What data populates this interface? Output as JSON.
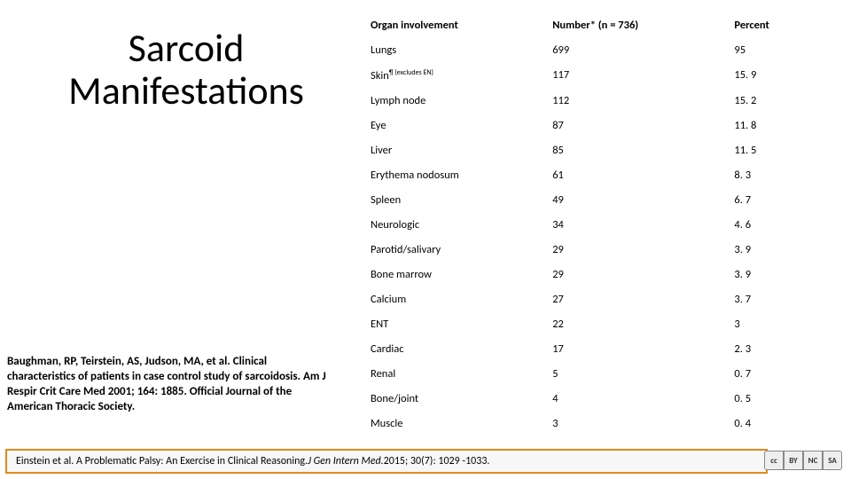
{
  "title": "Sarcoid Manifestations",
  "table": {
    "headers": [
      "Organ involvement",
      "Number* (n = 736)",
      "Percent"
    ],
    "rows": [
      {
        "organ": "Lungs",
        "number": "699",
        "percent": "95"
      },
      {
        "organ": "Skin",
        "organ_sup": "¶ (excludes EN)",
        "number": "117",
        "percent": "15. 9"
      },
      {
        "organ": "Lymph node",
        "number": "112",
        "percent": "15. 2"
      },
      {
        "organ": "Eye",
        "number": "87",
        "percent": "11. 8"
      },
      {
        "organ": "Liver",
        "number": "85",
        "percent": "11. 5"
      },
      {
        "organ": "Erythema nodosum",
        "number": "61",
        "percent": "8. 3"
      },
      {
        "organ": "Spleen",
        "number": "49",
        "percent": "6. 7"
      },
      {
        "organ": "Neurologic",
        "number": "34",
        "percent": "4. 6"
      },
      {
        "organ": "Parotid/salivary",
        "number": "29",
        "percent": "3. 9"
      },
      {
        "organ": "Bone marrow",
        "number": "29",
        "percent": "3. 9"
      },
      {
        "organ": "Calcium",
        "number": "27",
        "percent": "3. 7"
      },
      {
        "organ": "ENT",
        "number": "22",
        "percent": "3"
      },
      {
        "organ": "Cardiac",
        "number": "17",
        "percent": "2. 3"
      },
      {
        "organ": "Renal",
        "number": "5",
        "percent": "0. 7"
      },
      {
        "organ": "Bone/joint",
        "number": "4",
        "percent": "0. 5"
      },
      {
        "organ": "Muscle",
        "number": "3",
        "percent": "0. 4"
      }
    ]
  },
  "citation": "Baughman, RP, Teirstein, AS, Judson, MA, et al. Clinical characteristics of patients in case control study of sarcoidosis. Am J Respir Crit Care Med 2001; 164: 1885. Official Journal of the American Thoracic Society.",
  "footer": {
    "prefix": "Einstein et al. A Problematic Palsy: An Exercise in Clinical Reasoning. ",
    "journal": "J Gen Intern Med.",
    "suffix": " 2015; 30(7): 1029 -1033."
  },
  "cc_badges": [
    "cc",
    "BY",
    "NC",
    "SA"
  ],
  "colors": {
    "footer_border": "#e08a1e",
    "footer_bg": "#f7f7f7",
    "text": "#000000",
    "page_bg": "#ffffff"
  }
}
